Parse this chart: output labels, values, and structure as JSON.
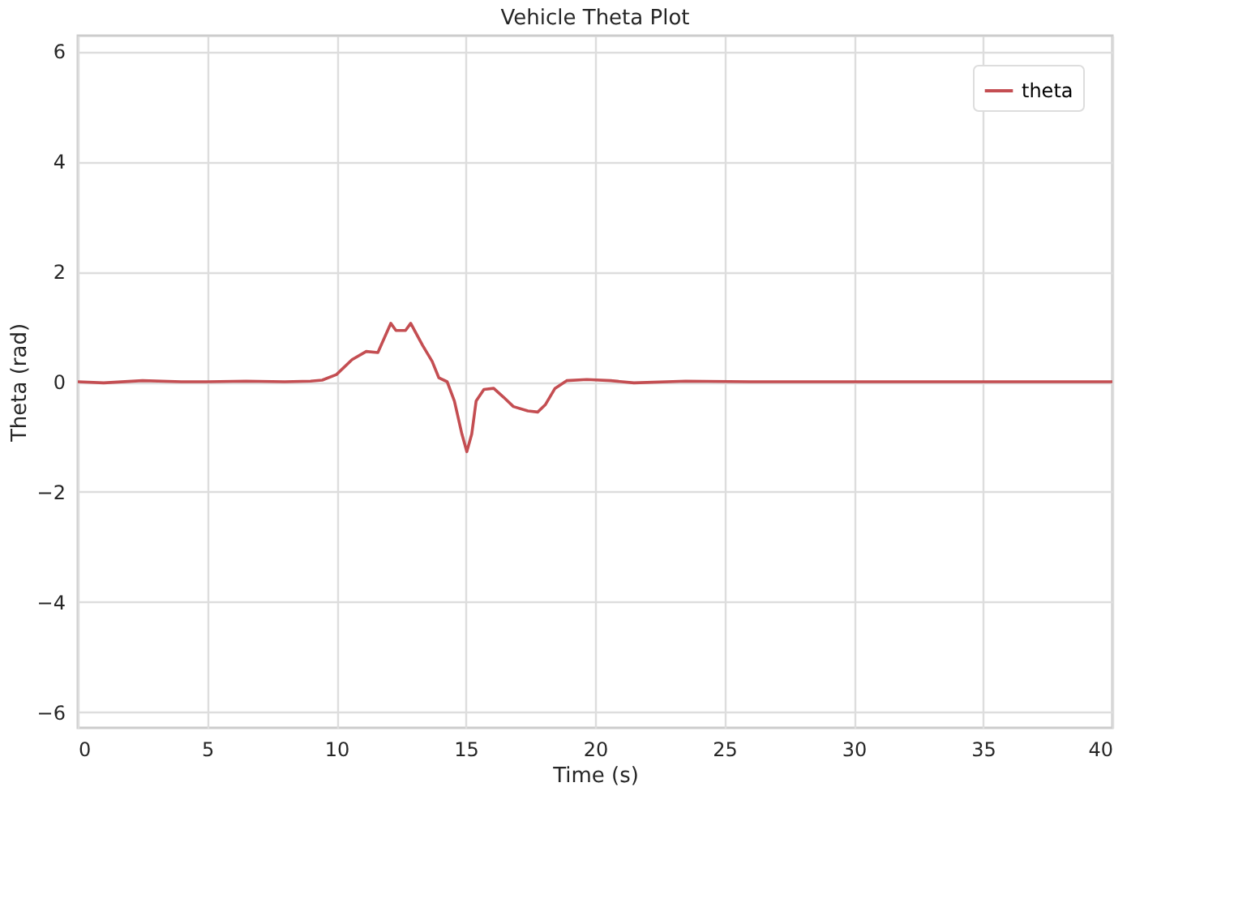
{
  "chart_data": {
    "type": "line",
    "title": "Vehicle Theta Plot",
    "xlabel": "Time (s)",
    "ylabel": "Theta (rad)",
    "x": [
      0,
      1,
      2.5,
      4,
      5,
      6.5,
      8,
      9,
      9.45,
      10.0,
      10.6,
      11.15,
      11.6,
      12.1,
      12.3,
      12.67,
      12.87,
      13.33,
      13.7,
      13.96,
      14.28,
      14.56,
      14.85,
      15.04,
      15.23,
      15.4,
      15.7,
      16.08,
      16.46,
      16.84,
      17.4,
      17.78,
      18.07,
      18.45,
      18.9,
      19.68,
      20.6,
      21.5,
      23.5,
      26,
      30,
      35,
      40
    ],
    "series": [
      {
        "name": "theta",
        "color": "#c44e52",
        "values": [
          0,
          -0.02,
          0.02,
          0,
          0,
          0.01,
          0,
          0.01,
          0.03,
          0.13,
          0.4,
          0.55,
          0.53,
          1.06,
          0.93,
          0.93,
          1.06,
          0.66,
          0.37,
          0.07,
          0,
          -0.35,
          -0.95,
          -1.27,
          -0.95,
          -0.35,
          -0.14,
          -0.12,
          -0.28,
          -0.45,
          -0.53,
          -0.55,
          -0.42,
          -0.12,
          0.02,
          0.04,
          0.02,
          -0.02,
          0.01,
          0,
          0,
          0,
          0
        ]
      }
    ],
    "xlim": [
      0,
      40
    ],
    "xticks": [
      0,
      5,
      10,
      15,
      20,
      25,
      30,
      35,
      40
    ],
    "ylim": [
      -6.28,
      6.28
    ],
    "yticks": [
      {
        "value": -6,
        "label": "−6"
      },
      {
        "value": -4,
        "label": "−4"
      },
      {
        "value": -2,
        "label": "−2"
      },
      0,
      2,
      4,
      6
    ],
    "grid": true,
    "legend": "top right",
    "line_style": "solid",
    "marker": "none"
  }
}
